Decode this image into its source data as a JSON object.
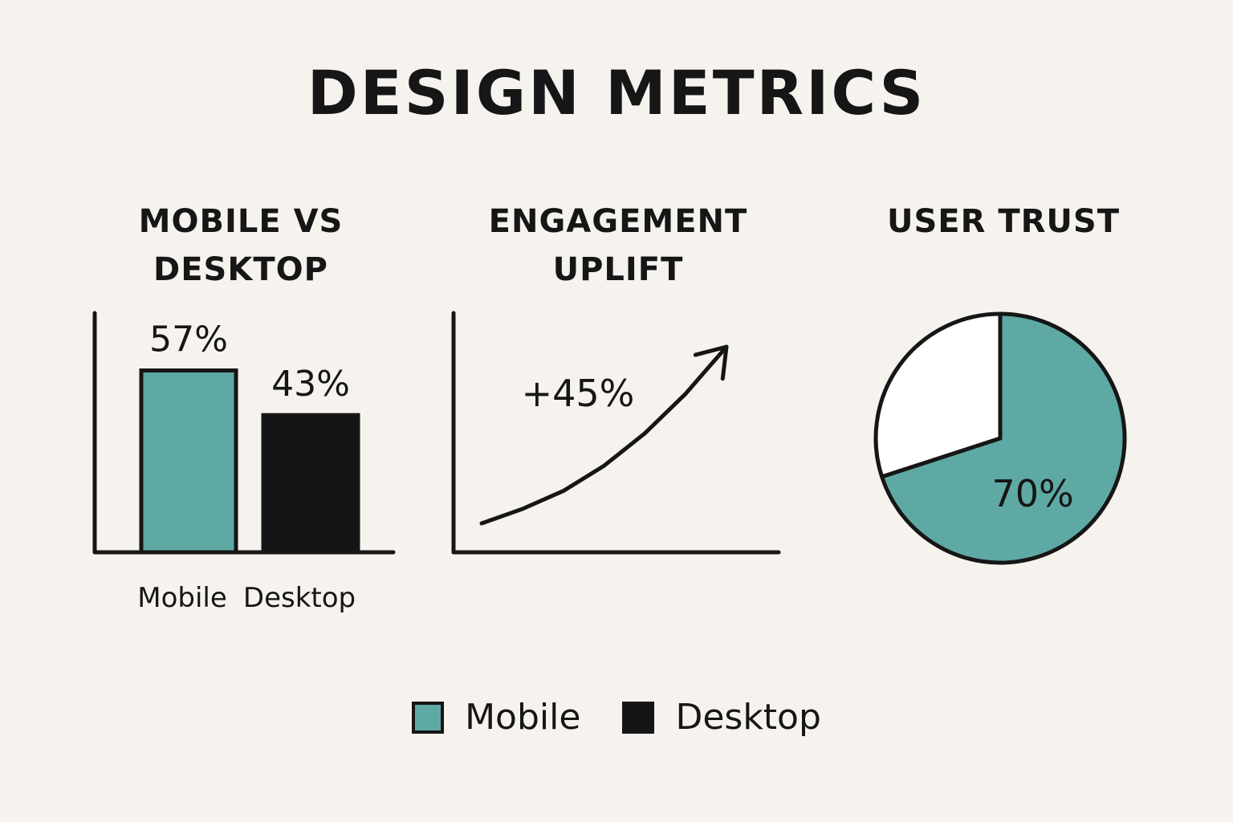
{
  "title": "DESIGN METRICS",
  "colors": {
    "mobile": "#5fa9a4",
    "desktop": "#141414",
    "ink": "#161616",
    "background": "#f6f3ee",
    "pie_remainder": "#ffffff"
  },
  "panels": {
    "mobile_vs_desktop": {
      "title_lines": [
        "MOBILE VS",
        "DESKTOP"
      ]
    },
    "engagement_uplift": {
      "title_lines": [
        "ENGAGEMENT",
        "UPLIFT"
      ],
      "annotation": "+45%"
    },
    "user_trust": {
      "title_lines": [
        "USER TRUST"
      ]
    }
  },
  "legend": {
    "items": [
      {
        "label": "Mobile",
        "color": "#5fa9a4"
      },
      {
        "label": "Desktop",
        "color": "#141414"
      }
    ],
    "placement": "bottom-center"
  },
  "chart_data": [
    {
      "type": "bar",
      "categories": [
        "Mobile",
        "Desktop"
      ],
      "values": [
        57,
        43
      ],
      "value_labels": [
        "57%",
        "43%"
      ],
      "colors": [
        "#5fa9a4",
        "#141414"
      ],
      "ylim": [
        0,
        75
      ]
    },
    {
      "type": "line",
      "x": [
        0,
        1,
        2,
        3,
        4,
        5,
        6
      ],
      "values": [
        0,
        4,
        9,
        16,
        25,
        36,
        49
      ],
      "annotation": "+45%",
      "arrow_at_end": true
    },
    {
      "type": "pie",
      "slices": [
        {
          "value": 70,
          "label": "70%",
          "color": "#5fa9a4"
        },
        {
          "value": 30,
          "label": "",
          "color": "#ffffff"
        }
      ]
    }
  ]
}
